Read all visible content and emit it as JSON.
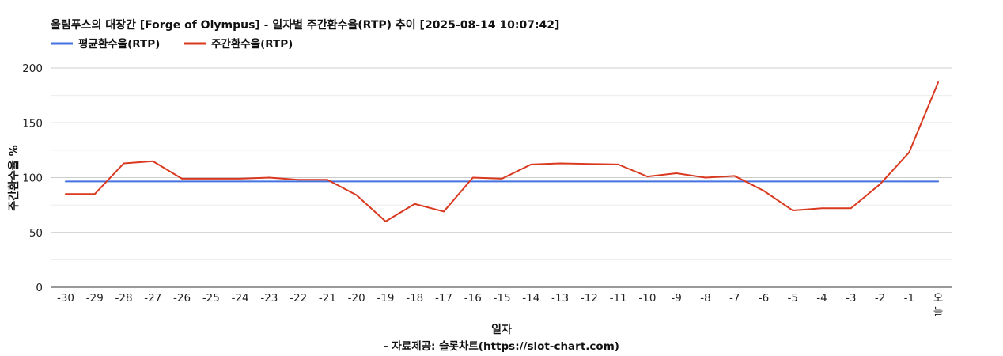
{
  "chart_data": {
    "type": "line",
    "title": "올림푸스의 대장간 [Forge of Olympus] - 일자별 주간환수율(RTP) 추이 [2025-08-14 10:07:42]",
    "xlabel": "일자",
    "ylabel": "주간환수율 %",
    "caption": "- 자료제공: 슬롯차트(https://slot-chart.com)",
    "legend_position": "top-left",
    "ylim": [
      0,
      200
    ],
    "yticks": [
      "0",
      "50",
      "100",
      "150",
      "200"
    ],
    "categories": [
      "-30",
      "-29",
      "-28",
      "-27",
      "-26",
      "-25",
      "-24",
      "-23",
      "-22",
      "-21",
      "-20",
      "-19",
      "-18",
      "-17",
      "-16",
      "-15",
      "-14",
      "-13",
      "-12",
      "-11",
      "-10",
      "-9",
      "-8",
      "-7",
      "-6",
      "-5",
      "-4",
      "-3",
      "-2",
      "-1",
      "오늘"
    ],
    "series": [
      {
        "name": "평균환수율(RTP)",
        "color": "#4472e0",
        "values": [
          96.5,
          96.5,
          96.5,
          96.5,
          96.5,
          96.5,
          96.5,
          96.5,
          96.5,
          96.5,
          96.5,
          96.5,
          96.5,
          96.5,
          96.5,
          96.5,
          96.5,
          96.5,
          96.5,
          96.5,
          96.5,
          96.5,
          96.5,
          96.5,
          96.5,
          96.5,
          96.5,
          96.5,
          96.5,
          96.5,
          96.5
        ]
      },
      {
        "name": "주간환수율(RTP)",
        "color": "#d9391f",
        "values": [
          85,
          85,
          113,
          115,
          99,
          99,
          99,
          100,
          98,
          98,
          84,
          60,
          76,
          69,
          100,
          99,
          112,
          113,
          112.5,
          112,
          101,
          104,
          100,
          101.5,
          88,
          70,
          72,
          72,
          94,
          123,
          187
        ]
      }
    ]
  }
}
